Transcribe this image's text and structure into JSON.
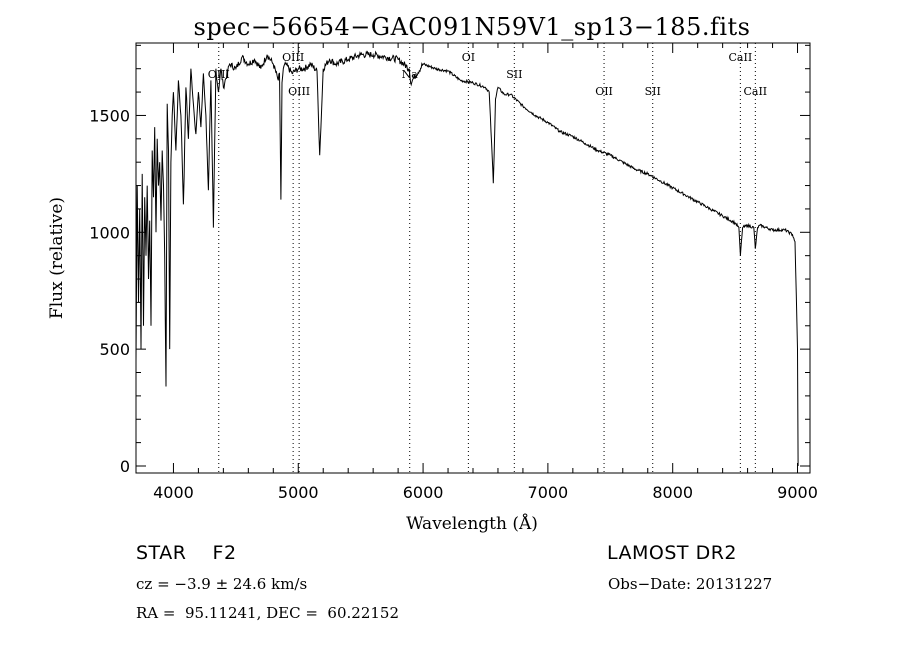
{
  "chart_data": {
    "type": "line",
    "title": "spec−56654−GAC091N59V1_sp13−185.fits",
    "xlabel": "Wavelength (Å)",
    "ylabel": "Flux (relative)",
    "xlim": [
      3700,
      9100
    ],
    "ylim": [
      -30,
      1810
    ],
    "x_ticks": [
      4000,
      5000,
      6000,
      7000,
      8000,
      9000
    ],
    "y_ticks": [
      0,
      500,
      1000,
      1500
    ],
    "series": [
      {
        "x": [
          3700,
          3710,
          3720,
          3730,
          3740,
          3750,
          3760,
          3770,
          3780,
          3790,
          3800,
          3810,
          3820,
          3830,
          3840,
          3850,
          3860,
          3870,
          3880,
          3890,
          3900,
          3910,
          3920,
          3930,
          3940,
          3950,
          3960,
          3970,
          3980,
          3990,
          4000,
          4020,
          4040,
          4060,
          4080,
          4100,
          4120,
          4140,
          4160,
          4180,
          4200,
          4220,
          4240,
          4260,
          4280,
          4300,
          4320,
          4340,
          4360,
          4380,
          4400,
          4450,
          4500,
          4550,
          4600,
          4650,
          4700,
          4750,
          4800,
          4840,
          4850,
          4861,
          4870,
          4880,
          4900,
          4950,
          5000,
          5050,
          5100,
          5150,
          5172,
          5200,
          5250,
          5300,
          5400,
          5500,
          5600,
          5700,
          5800,
          5890,
          5900,
          6000,
          6100,
          6200,
          6300,
          6400,
          6500,
          6530,
          6563,
          6580,
          6600,
          6650,
          6700,
          6800,
          6900,
          7000,
          7100,
          7200,
          7300,
          7400,
          7500,
          7600,
          7700,
          7800,
          7900,
          8000,
          8100,
          8200,
          8300,
          8400,
          8500,
          8530,
          8542,
          8560,
          8600,
          8650,
          8662,
          8680,
          8700,
          8800,
          8900,
          8960,
          8980,
          9000,
          9005
        ],
        "y": [
          450,
          1200,
          700,
          1100,
          500,
          1250,
          600,
          1150,
          900,
          1200,
          800,
          1050,
          600,
          1350,
          1150,
          1450,
          1000,
          1400,
          1200,
          1300,
          1050,
          1350,
          1200,
          900,
          340,
          1550,
          1350,
          500,
          1300,
          1500,
          1600,
          1350,
          1650,
          1500,
          1120,
          1620,
          1400,
          1700,
          1550,
          1420,
          1600,
          1450,
          1680,
          1500,
          1180,
          1650,
          1020,
          1700,
          1600,
          1700,
          1620,
          1720,
          1700,
          1750,
          1720,
          1740,
          1700,
          1760,
          1720,
          1650,
          1680,
          1140,
          1640,
          1700,
          1720,
          1680,
          1700,
          1700,
          1720,
          1690,
          1330,
          1700,
          1740,
          1720,
          1740,
          1760,
          1760,
          1750,
          1740,
          1700,
          1640,
          1720,
          1700,
          1690,
          1650,
          1640,
          1620,
          1600,
          1210,
          1570,
          1620,
          1590,
          1590,
          1540,
          1500,
          1470,
          1430,
          1410,
          1380,
          1350,
          1330,
          1300,
          1270,
          1250,
          1220,
          1190,
          1160,
          1130,
          1100,
          1070,
          1040,
          1020,
          900,
          1020,
          1030,
          1020,
          930,
          1020,
          1030,
          1010,
          1010,
          990,
          960,
          500,
          0
        ]
      }
    ],
    "line_labels": [
      {
        "name": "OIII",
        "x": 4363,
        "row": 2
      },
      {
        "name": "OIII",
        "x": 4959,
        "row": 1
      },
      {
        "name": "OIII",
        "x": 5007,
        "row": 3
      },
      {
        "name": "Na",
        "x": 5893,
        "row": 2
      },
      {
        "name": "OI",
        "x": 6363,
        "row": 1
      },
      {
        "name": "SII",
        "x": 6731,
        "row": 2
      },
      {
        "name": "OII",
        "x": 7450,
        "row": 3
      },
      {
        "name": "SII",
        "x": 7840,
        "row": 3
      },
      {
        "name": "CaII",
        "x": 8542,
        "row": 1
      },
      {
        "name": "CaII",
        "x": 8662,
        "row": 3
      }
    ]
  },
  "info": {
    "object": "STAR    F2",
    "survey": "LAMOST DR2",
    "cz": "cz = −3.9 ± 24.6 km/s",
    "obs_date": "Obs−Date: 20131227",
    "radec": "RA =  95.11241, DEC =  60.22152"
  }
}
